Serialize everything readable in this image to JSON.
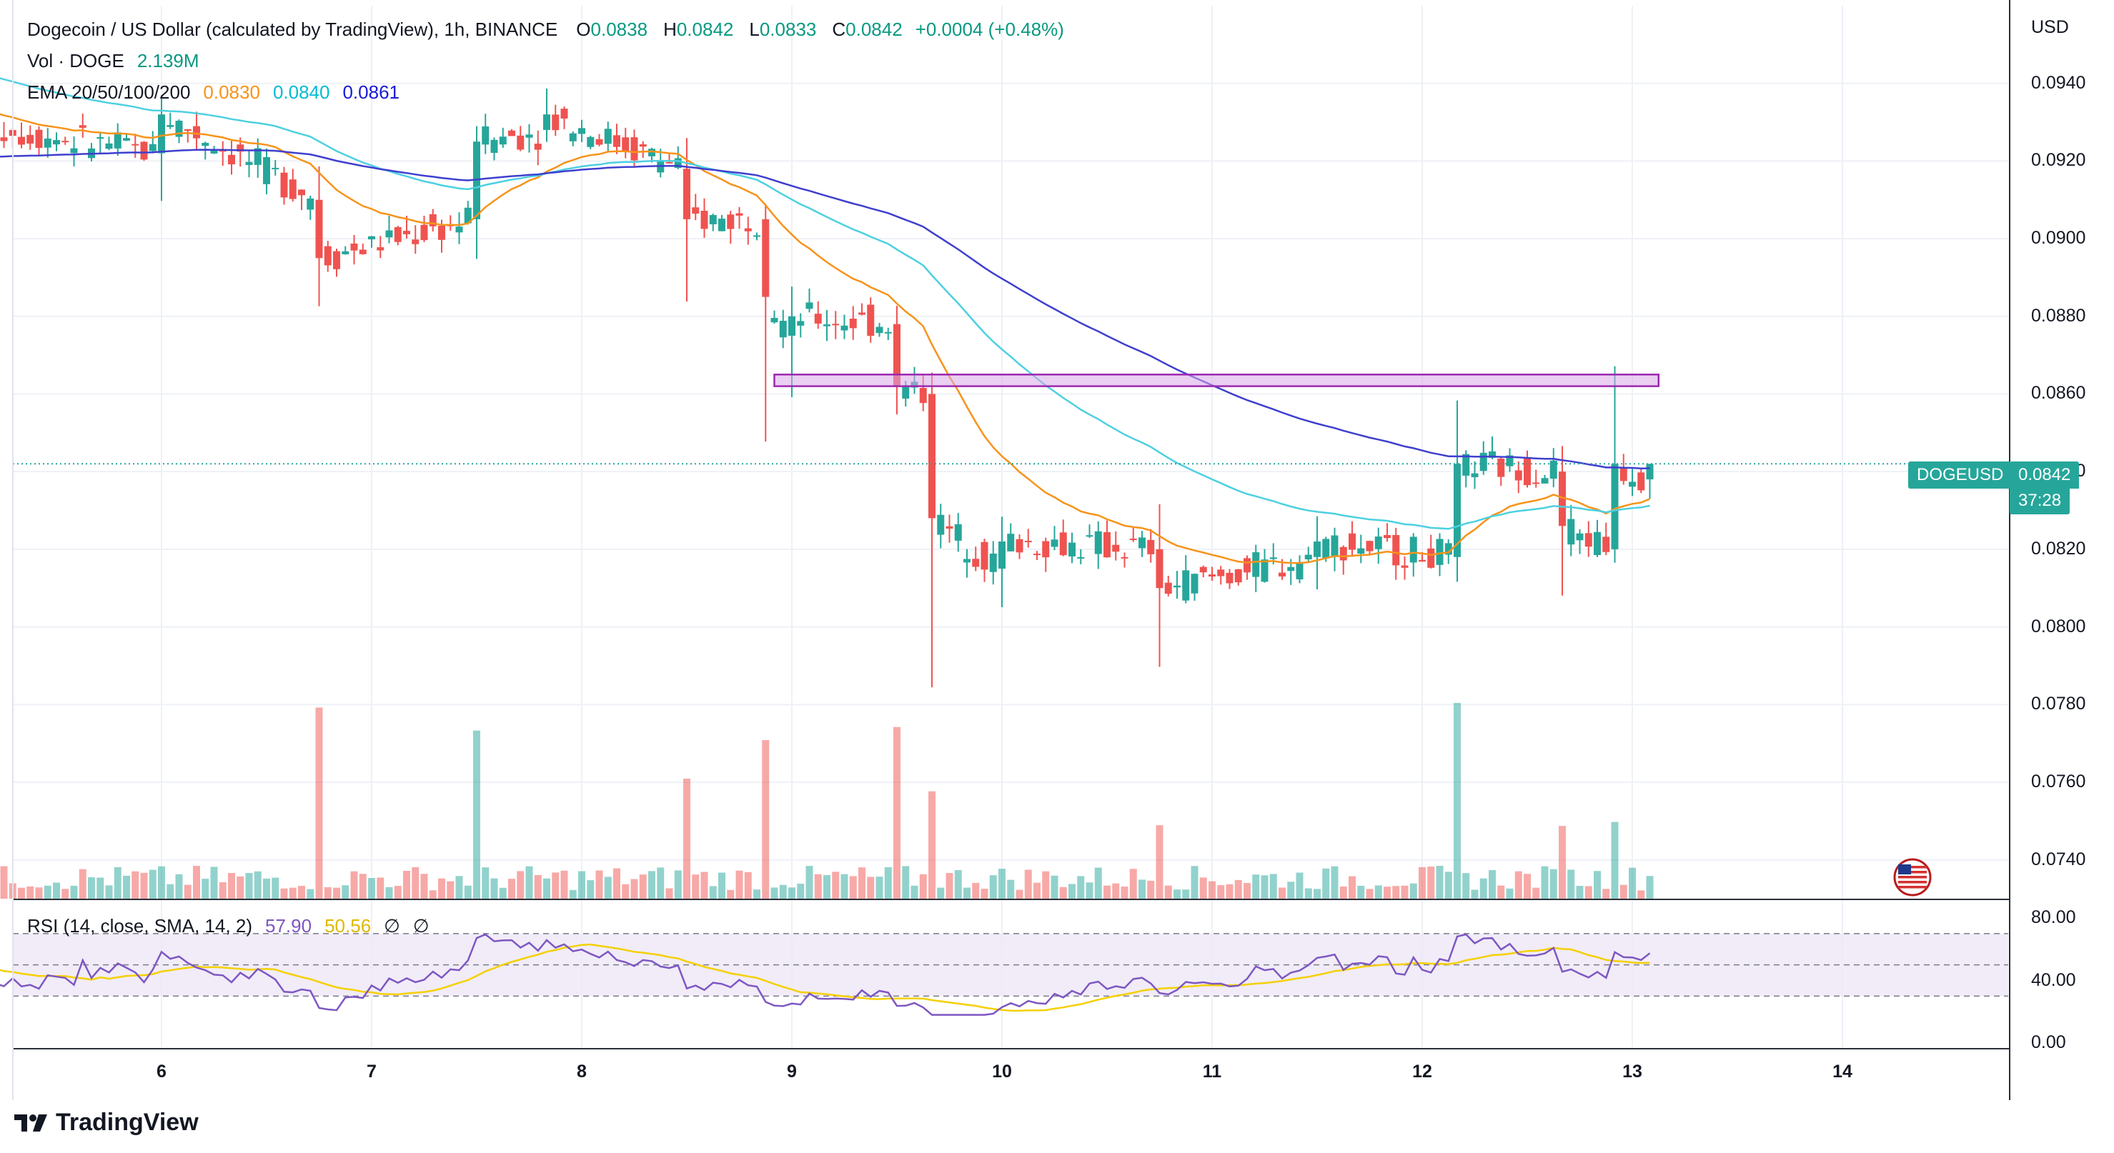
{
  "header": {
    "title": "Dogecoin / US Dollar (calculated by TradingView), 1h, BINANCE",
    "ohlc": [
      {
        "k": "O",
        "v": "0.0838"
      },
      {
        "k": "H",
        "v": "0.0842"
      },
      {
        "k": "L",
        "v": "0.0833"
      },
      {
        "k": "C",
        "v": "0.0842"
      }
    ],
    "change": "+0.0004 (+0.48%)",
    "vol_label": "Vol · DOGE",
    "vol_value": "2.139M",
    "ema_label": "EMA 20/50/100/200",
    "ema_values": [
      "0.0830",
      "0.0840",
      "0.0861"
    ],
    "rsi_label": "RSI (14, close, SMA, 14, 2)",
    "rsi_value": "57.90",
    "rsi_sma": "50.56",
    "rsi_extra": [
      "∅",
      "∅"
    ]
  },
  "price_axis": {
    "currency": "USD",
    "ticks": [
      "0.0940",
      "0.0920",
      "0.0900",
      "0.0880",
      "0.0860",
      "0.0840",
      "0.0820",
      "0.0800",
      "0.0780",
      "0.0760",
      "0.0740"
    ]
  },
  "rsi_axis": {
    "ticks": [
      "80.00",
      "40.00",
      "0.00"
    ]
  },
  "time_axis": {
    "ticks": [
      "6",
      "7",
      "8",
      "9",
      "10",
      "11",
      "12",
      "13",
      "14"
    ]
  },
  "price_tag": {
    "symbol": "DOGEUSD",
    "price": "0.0842",
    "countdown": "37:28"
  },
  "brand": "TradingView",
  "colors": {
    "up": "#26a69a",
    "down": "#ef5350",
    "ema20": "#f7931a",
    "ema50": "#4dd0e1",
    "ema100": "#3f3fcf",
    "rsi": "#7e57c2",
    "rsi_sma": "#f5d000",
    "zone": "#9c27b0"
  },
  "chart_data": {
    "type": "candlestick",
    "title": "Dogecoin / US Dollar (calculated by TradingView), 1h, BINANCE",
    "x_ticks": [
      "6",
      "7",
      "8",
      "9",
      "10",
      "11",
      "12",
      "13",
      "14"
    ],
    "ylim": [
      0.073,
      0.096
    ],
    "resistance_zone": [
      0.0862,
      0.0865
    ],
    "last_price": 0.0842,
    "ohlc_anchor_points": [
      {
        "t": "5 00:00",
        "o": 0.0948,
        "c": 0.093,
        "h": 0.0955,
        "l": 0.092
      },
      {
        "t": "6 00:00",
        "o": 0.0922,
        "c": 0.0932,
        "h": 0.0935,
        "l": 0.091
      },
      {
        "t": "6 18:00",
        "o": 0.091,
        "c": 0.0895,
        "h": 0.0915,
        "l": 0.0885
      },
      {
        "t": "7 12:00",
        "o": 0.0905,
        "c": 0.0925,
        "h": 0.0928,
        "l": 0.0895
      },
      {
        "t": "7 20:00",
        "o": 0.0928,
        "c": 0.0932,
        "h": 0.0935,
        "l": 0.0925
      },
      {
        "t": "8 12:00",
        "o": 0.0918,
        "c": 0.0905,
        "h": 0.0925,
        "l": 0.0885
      },
      {
        "t": "8 21:00",
        "o": 0.0905,
        "c": 0.0885,
        "h": 0.0908,
        "l": 0.085
      },
      {
        "t": "9 00:00",
        "o": 0.0875,
        "c": 0.088,
        "h": 0.0885,
        "l": 0.0862
      },
      {
        "t": "9 12:00",
        "o": 0.0878,
        "c": 0.0862,
        "h": 0.0882,
        "l": 0.0855
      },
      {
        "t": "9 16:00",
        "o": 0.086,
        "c": 0.0828,
        "h": 0.0865,
        "l": 0.0787
      },
      {
        "t": "10 00:00",
        "o": 0.0815,
        "c": 0.0822,
        "h": 0.0828,
        "l": 0.0808
      },
      {
        "t": "10 18:00",
        "o": 0.082,
        "c": 0.081,
        "h": 0.083,
        "l": 0.0793
      },
      {
        "t": "11 12:00",
        "o": 0.0818,
        "c": 0.0822,
        "h": 0.0826,
        "l": 0.0813
      },
      {
        "t": "12 04:00",
        "o": 0.0818,
        "c": 0.0842,
        "h": 0.0856,
        "l": 0.0815
      },
      {
        "t": "12 16:00",
        "o": 0.084,
        "c": 0.0826,
        "h": 0.0843,
        "l": 0.0812
      },
      {
        "t": "12 22:00",
        "o": 0.082,
        "c": 0.0842,
        "h": 0.0865,
        "l": 0.0818
      },
      {
        "t": "13 02:00",
        "o": 0.0838,
        "c": 0.0842,
        "h": 0.0842,
        "l": 0.0833
      }
    ],
    "ema": [
      {
        "name": "EMA 20",
        "last": 0.083
      },
      {
        "name": "EMA 50",
        "last": 0.084
      },
      {
        "name": "EMA 100",
        "last": 0.0861
      }
    ],
    "volume_last": "2.139M",
    "rsi": {
      "last": 57.9,
      "sma": 50.56,
      "ylim": [
        0,
        100
      ],
      "bands": [
        30,
        70
      ]
    }
  }
}
